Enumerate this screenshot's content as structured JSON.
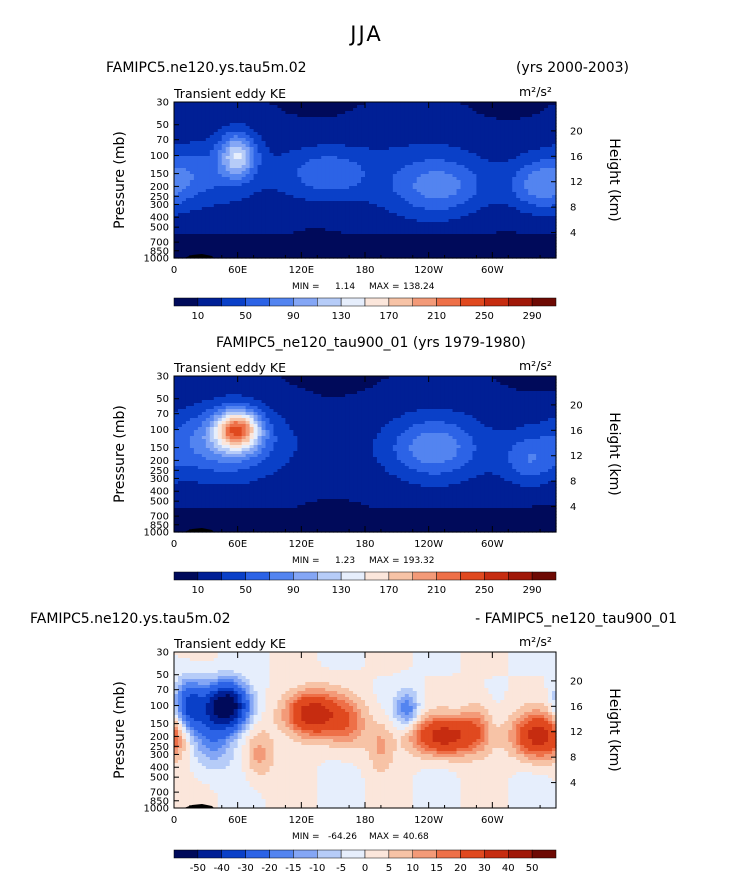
{
  "figure": {
    "title": "JJA",
    "field_label": "Transient eddy KE",
    "units_label": "m²/s²"
  },
  "axes": {
    "y_left_label": "Pressure (mb)",
    "y_right_label": "Height (km)",
    "pressure_ticks": [
      "30",
      "50",
      "70",
      "100",
      "150",
      "200",
      "250",
      "300",
      "400",
      "500",
      "700",
      "850",
      "1000"
    ],
    "height_ticks": [
      "20",
      "16",
      "12",
      "8",
      "4"
    ],
    "lon_ticks": [
      "0",
      "60E",
      "120E",
      "180",
      "120W",
      "60W"
    ]
  },
  "panels": [
    {
      "left_title": "FAMIPC5.ne120.ys.tau5m.02",
      "right_title": "(yrs 2000-2003)",
      "min_label": "MIN =",
      "min_value": "1.14",
      "max_label": "MAX =",
      "max_value": "138.24"
    },
    {
      "left_title": "FAMIPC5_ne120_tau900_01 (yrs 1979-1980)",
      "right_title": "",
      "min_label": "MIN =",
      "min_value": "1.23",
      "max_label": "MAX =",
      "max_value": "193.32"
    },
    {
      "left_title": "FAMIPC5.ne120.ys.tau5m.02",
      "right_title": "- FAMIPC5_ne120_tau900_01",
      "min_label": "MIN =",
      "min_value": "-64.26",
      "max_label": "MAX =",
      "max_value": "40.68"
    }
  ],
  "colorbars": {
    "abs_labels": [
      "10",
      "50",
      "90",
      "130",
      "170",
      "210",
      "250",
      "290"
    ],
    "abs_colors": [
      "#000a5a",
      "#001f95",
      "#0a40c8",
      "#2c63e6",
      "#5384f0",
      "#84a6f5",
      "#b6ccf8",
      "#e6eefc",
      "#fbe6db",
      "#f7c3a6",
      "#f39a78",
      "#ee7048",
      "#e0491f",
      "#c62c10",
      "#a01808",
      "#6e0a04"
    ],
    "diff_labels": [
      "-50",
      "-40",
      "-30",
      "-20",
      "-15",
      "-10",
      "-5",
      "0",
      "5",
      "10",
      "15",
      "20",
      "30",
      "40",
      "50"
    ],
    "diff_colors": [
      "#000a5a",
      "#001f95",
      "#0a40c8",
      "#2c63e6",
      "#5384f0",
      "#84a6f5",
      "#b6ccf8",
      "#e6eefc",
      "#fbe6db",
      "#f7c3a6",
      "#f39a78",
      "#ee7048",
      "#e0491f",
      "#c62c10",
      "#a01808",
      "#6e0a04"
    ]
  },
  "chart_data": [
    {
      "type": "heatmap",
      "title": "FAMIPC5.ne120.ys.tau5m.02 (yrs 2000-2003)",
      "field": "Transient eddy KE",
      "units": "m²/s²",
      "x": "longitude",
      "y": "pressure (mb)",
      "xlim": [
        0,
        360
      ],
      "ylim": [
        1000,
        30
      ],
      "levels": [
        10,
        30,
        50,
        70,
        90,
        110,
        130,
        150,
        170,
        190,
        210,
        230,
        250,
        270,
        290
      ],
      "min": 1.14,
      "max": 138.24,
      "features": [
        {
          "lon": 60,
          "p": 100,
          "value": 130
        },
        {
          "lon": 145,
          "p": 150,
          "value": 60
        },
        {
          "lon": 250,
          "p": 200,
          "value": 70
        },
        {
          "lon": 345,
          "p": 200,
          "value": 70
        }
      ]
    },
    {
      "type": "heatmap",
      "title": "FAMIPC5_ne120_tau900_01 (yrs 1979-1980)",
      "field": "Transient eddy KE",
      "units": "m²/s²",
      "x": "longitude",
      "y": "pressure (mb)",
      "xlim": [
        0,
        360
      ],
      "ylim": [
        1000,
        30
      ],
      "levels": [
        10,
        30,
        50,
        70,
        90,
        110,
        130,
        150,
        170,
        190,
        210,
        230,
        250,
        270,
        290
      ],
      "min": 1.23,
      "max": 193.32,
      "features": [
        {
          "lon": 60,
          "p": 100,
          "value": 190
        },
        {
          "lon": 245,
          "p": 150,
          "value": 75
        },
        {
          "lon": 335,
          "p": 200,
          "value": 60
        }
      ]
    },
    {
      "type": "heatmap",
      "title": "FAMIPC5.ne120.ys.tau5m.02 - FAMIPC5_ne120_tau900_01",
      "field": "Transient eddy KE",
      "units": "m²/s²",
      "x": "longitude",
      "y": "pressure (mb)",
      "xlim": [
        0,
        360
      ],
      "ylim": [
        1000,
        30
      ],
      "levels": [
        -50,
        -40,
        -30,
        -20,
        -15,
        -10,
        -5,
        0,
        5,
        10,
        15,
        20,
        30,
        40,
        50
      ],
      "min": -64.26,
      "max": 40.68,
      "features": [
        {
          "lon": 50,
          "p": 100,
          "value": -55
        },
        {
          "lon": 15,
          "p": 100,
          "value": -35
        },
        {
          "lon": 130,
          "p": 120,
          "value": 35
        },
        {
          "lon": 255,
          "p": 200,
          "value": 35
        },
        {
          "lon": 345,
          "p": 200,
          "value": 35
        },
        {
          "lon": 220,
          "p": 110,
          "value": -20
        }
      ]
    }
  ]
}
